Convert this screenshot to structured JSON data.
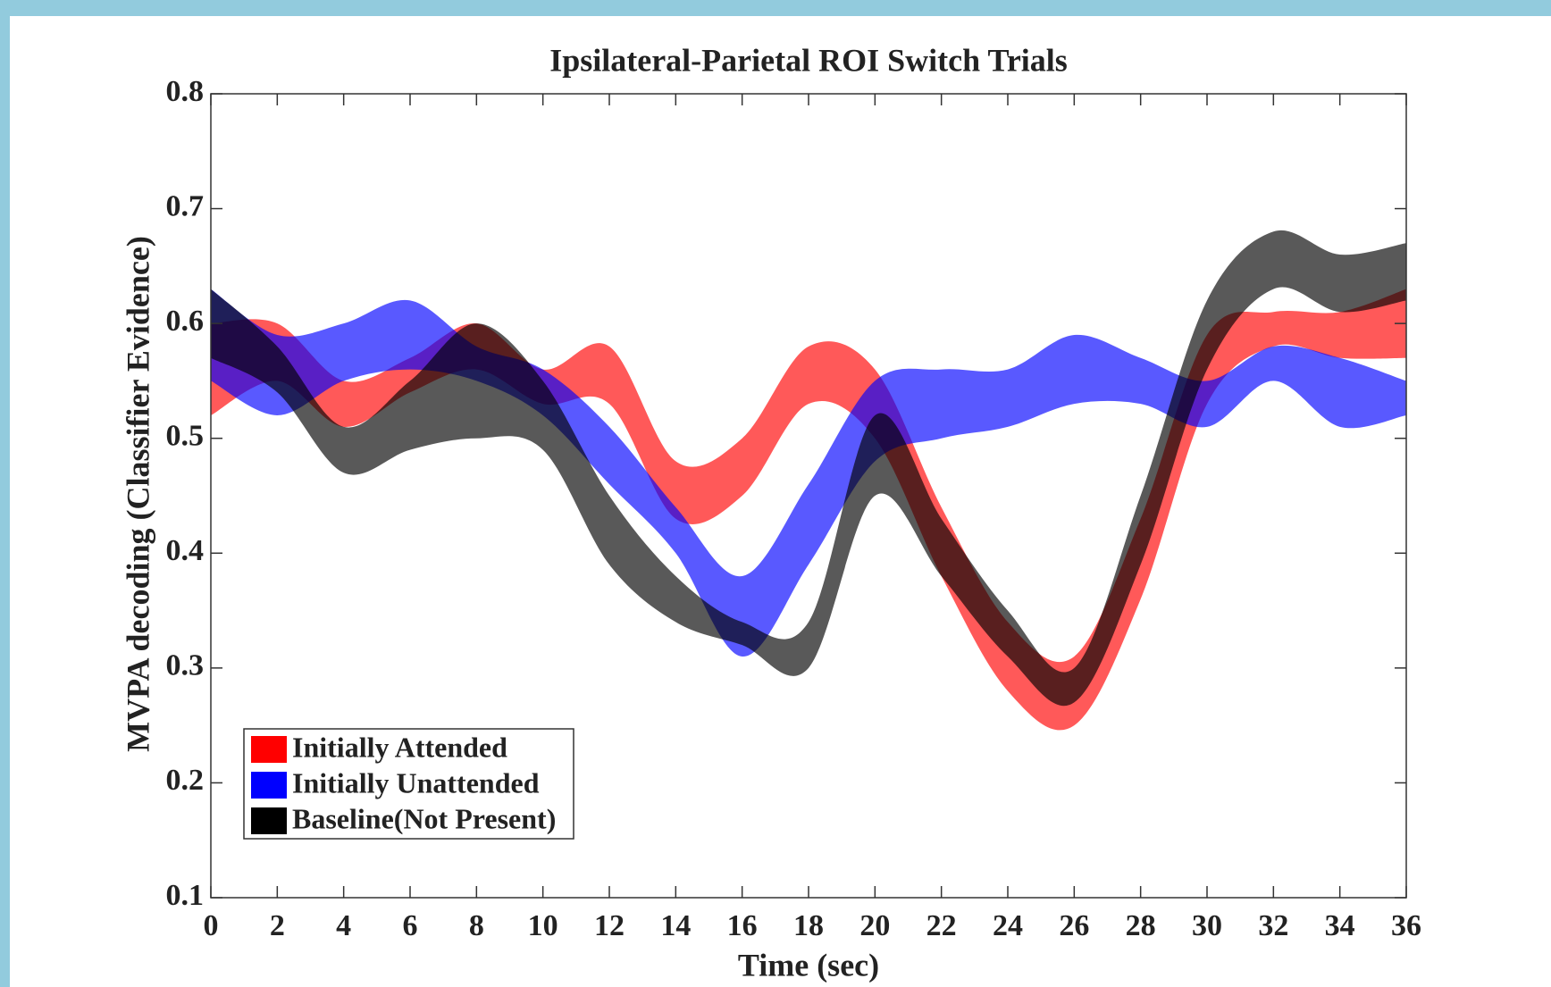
{
  "chart_data": {
    "type": "band",
    "title": "Ipsilateral-Parietal ROI Switch Trials",
    "xlabel": "Time (sec)",
    "ylabel": "MVPA decoding (Classifier Evidence)",
    "x": [
      0,
      2,
      4,
      6,
      8,
      10,
      12,
      14,
      16,
      18,
      20,
      22,
      24,
      26,
      28,
      30,
      32,
      34,
      36
    ],
    "series": [
      {
        "name": "Initially Attended",
        "color": "#ff0000",
        "upper": [
          0.6,
          0.6,
          0.55,
          0.57,
          0.6,
          0.56,
          0.58,
          0.48,
          0.5,
          0.58,
          0.56,
          0.44,
          0.34,
          0.31,
          0.43,
          0.59,
          0.61,
          0.61,
          0.63
        ],
        "lower": [
          0.52,
          0.55,
          0.51,
          0.54,
          0.56,
          0.53,
          0.53,
          0.43,
          0.45,
          0.53,
          0.5,
          0.38,
          0.28,
          0.25,
          0.36,
          0.53,
          0.58,
          0.57,
          0.57
        ]
      },
      {
        "name": "Initially Unattended",
        "color": "#0000ff",
        "upper": [
          0.63,
          0.59,
          0.6,
          0.62,
          0.58,
          0.56,
          0.51,
          0.44,
          0.38,
          0.46,
          0.55,
          0.56,
          0.56,
          0.59,
          0.57,
          0.55,
          0.58,
          0.57,
          0.55
        ],
        "lower": [
          0.55,
          0.52,
          0.55,
          0.56,
          0.55,
          0.52,
          0.46,
          0.4,
          0.31,
          0.39,
          0.48,
          0.5,
          0.51,
          0.53,
          0.53,
          0.51,
          0.55,
          0.51,
          0.52
        ]
      },
      {
        "name": "Baseline(Not Present)",
        "color": "#000000",
        "upper": [
          0.63,
          0.58,
          0.51,
          0.55,
          0.6,
          0.55,
          0.45,
          0.38,
          0.34,
          0.34,
          0.52,
          0.43,
          0.35,
          0.3,
          0.45,
          0.62,
          0.68,
          0.66,
          0.67
        ],
        "lower": [
          0.57,
          0.54,
          0.47,
          0.49,
          0.5,
          0.49,
          0.39,
          0.34,
          0.32,
          0.3,
          0.45,
          0.38,
          0.31,
          0.27,
          0.39,
          0.56,
          0.63,
          0.61,
          0.62
        ]
      }
    ],
    "opacity": 0.65,
    "xlim": [
      0,
      36
    ],
    "xticks": [
      0,
      2,
      4,
      6,
      8,
      10,
      12,
      14,
      16,
      18,
      20,
      22,
      24,
      26,
      28,
      30,
      32,
      34,
      36
    ],
    "ylim": [
      0.1,
      0.8
    ],
    "yticks": [
      0.1,
      0.2,
      0.3,
      0.4,
      0.5,
      0.6,
      0.7,
      0.8
    ],
    "legend": "lower left"
  }
}
